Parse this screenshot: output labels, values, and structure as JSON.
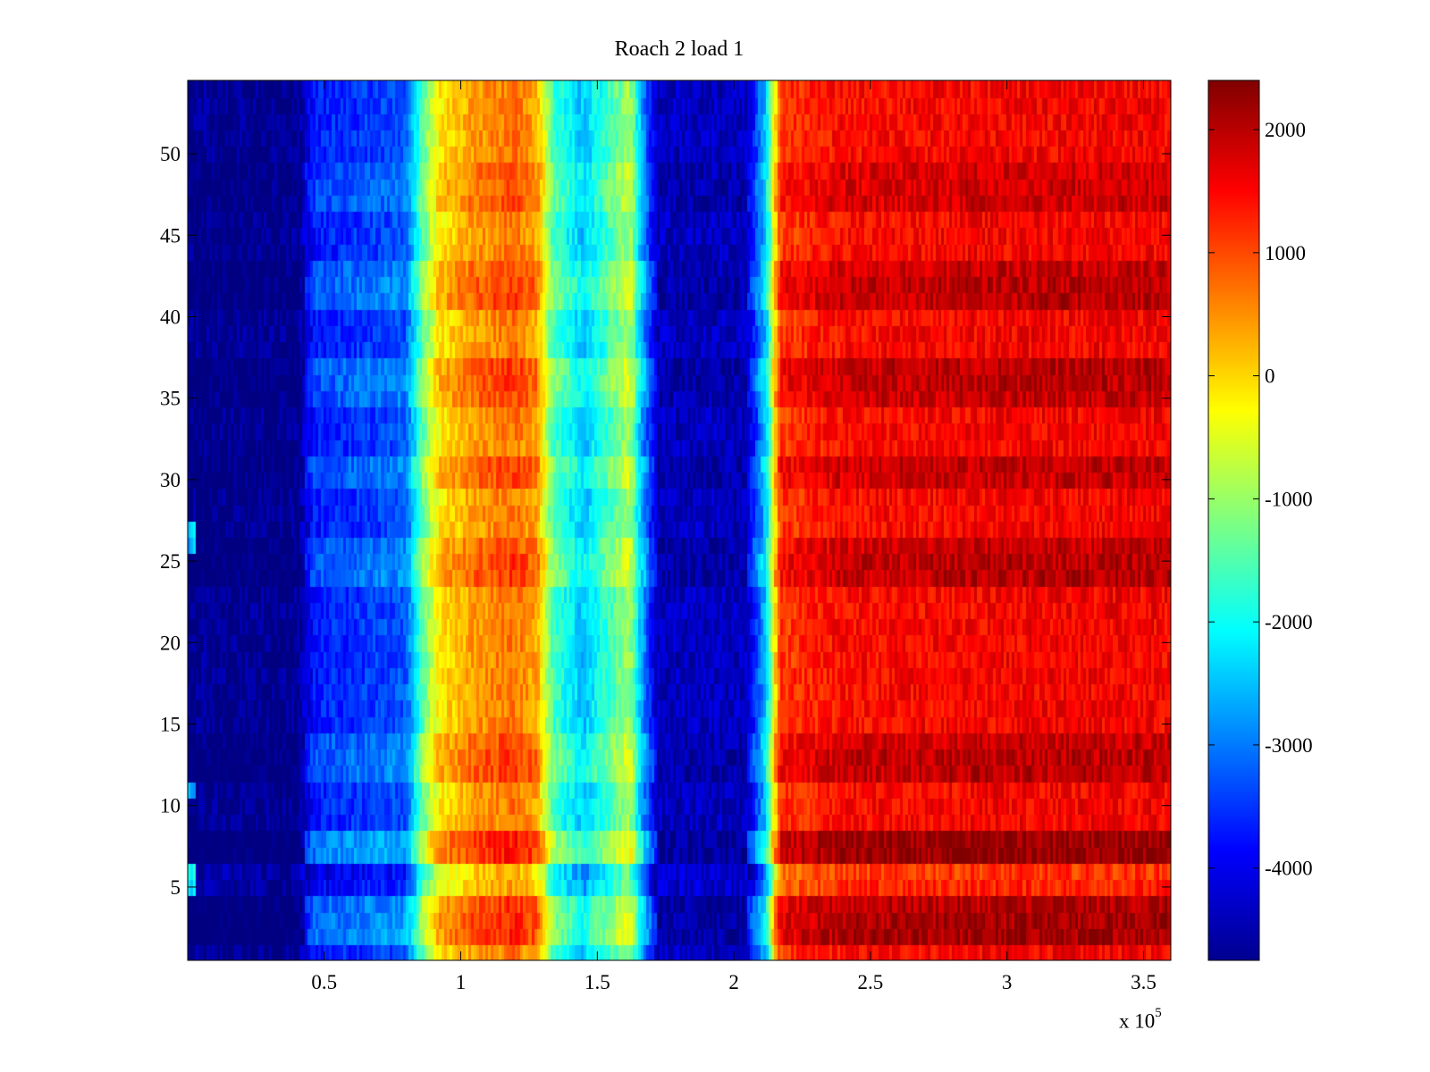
{
  "chart_data": {
    "type": "heatmap",
    "title": "Roach 2 load 1",
    "xlabel": "",
    "ylabel": "",
    "x_multiplier_label": "x 10",
    "x_multiplier_exponent": "5",
    "xlim": [
      0,
      360000
    ],
    "ylim": [
      0.5,
      54.5
    ],
    "x_ticks": [
      50000,
      100000,
      150000,
      200000,
      250000,
      300000,
      350000
    ],
    "x_tick_labels": [
      "0.5",
      "1",
      "1.5",
      "2",
      "2.5",
      "3",
      "3.5"
    ],
    "y_ticks": [
      5,
      10,
      15,
      20,
      25,
      30,
      35,
      40,
      45,
      50
    ],
    "y_tick_labels": [
      "5",
      "10",
      "15",
      "20",
      "25",
      "30",
      "35",
      "40",
      "45",
      "50"
    ],
    "colorbar": {
      "colormap": "jet",
      "clim": [
        -4750,
        2400
      ],
      "ticks": [
        -4000,
        -3000,
        -2000,
        -1000,
        0,
        1000,
        2000
      ],
      "tick_labels": [
        "-4000",
        "-3000",
        "-2000",
        "-1000",
        "0",
        "1000",
        "2000"
      ]
    },
    "rows": 54,
    "column_profile": [
      {
        "x": 0,
        "value": -4650
      },
      {
        "x": 40000,
        "value": -4650
      },
      {
        "x": 47000,
        "value": -3700
      },
      {
        "x": 80000,
        "value": -3300
      },
      {
        "x": 86000,
        "value": -1500
      },
      {
        "x": 92000,
        "value": -200
      },
      {
        "x": 105000,
        "value": 400
      },
      {
        "x": 120000,
        "value": 700
      },
      {
        "x": 128000,
        "value": 300
      },
      {
        "x": 134000,
        "value": -1600
      },
      {
        "x": 145000,
        "value": -2500
      },
      {
        "x": 155000,
        "value": -1600
      },
      {
        "x": 162000,
        "value": -900
      },
      {
        "x": 166000,
        "value": -2600
      },
      {
        "x": 172000,
        "value": -4300
      },
      {
        "x": 205000,
        "value": -4300
      },
      {
        "x": 212000,
        "value": -2500
      },
      {
        "x": 217000,
        "value": 1100
      },
      {
        "x": 240000,
        "value": 1450
      },
      {
        "x": 300000,
        "value": 1550
      },
      {
        "x": 360000,
        "value": 1550
      }
    ],
    "row_effects": [
      {
        "row": 2,
        "offset": 600
      },
      {
        "row": 3,
        "offset": 600
      },
      {
        "row": 4,
        "offset": 500
      },
      {
        "row": 5,
        "offset": -250
      },
      {
        "row": 6,
        "offset": -400
      },
      {
        "row": 7,
        "offset": 700
      },
      {
        "row": 8,
        "offset": 700
      },
      {
        "row": 12,
        "offset": 450
      },
      {
        "row": 13,
        "offset": 450
      },
      {
        "row": 14,
        "offset": 350
      },
      {
        "row": 24,
        "offset": 450
      },
      {
        "row": 25,
        "offset": 450
      },
      {
        "row": 26,
        "offset": 350
      },
      {
        "row": 30,
        "offset": 350
      },
      {
        "row": 31,
        "offset": 400
      },
      {
        "row": 35,
        "offset": 350
      },
      {
        "row": 36,
        "offset": 450
      },
      {
        "row": 37,
        "offset": 450
      },
      {
        "row": 41,
        "offset": 450
      },
      {
        "row": 42,
        "offset": 450
      },
      {
        "row": 43,
        "offset": 350
      },
      {
        "row": 47,
        "offset": 300
      },
      {
        "row": 48,
        "offset": 300
      },
      {
        "row": 49,
        "offset": 250
      }
    ],
    "left_edge_anomalies": [
      {
        "row": 5,
        "value": -2200
      },
      {
        "row": 6,
        "value": -2000
      },
      {
        "row": 11,
        "value": -2800
      },
      {
        "row": 26,
        "value": -2600
      },
      {
        "row": 27,
        "value": -2300
      }
    ]
  }
}
